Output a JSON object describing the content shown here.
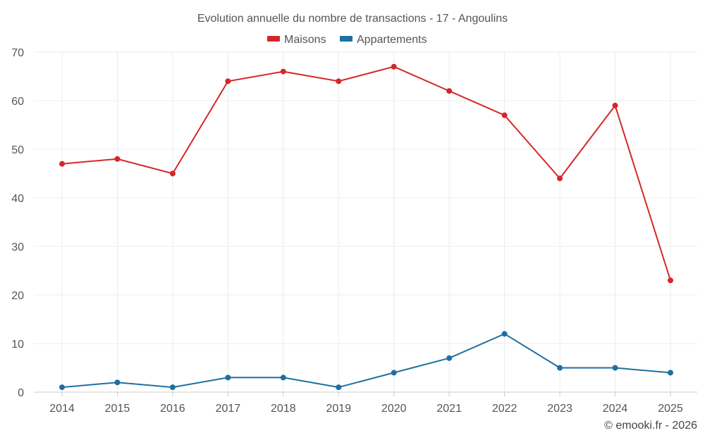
{
  "chart_data": {
    "type": "line",
    "title": "Evolution annuelle du nombre de transactions - 17 - Angoulins",
    "categories": [
      "2014",
      "2015",
      "2016",
      "2017",
      "2018",
      "2019",
      "2020",
      "2021",
      "2022",
      "2023",
      "2024",
      "2025"
    ],
    "series": [
      {
        "name": "Maisons",
        "color": "#d62728",
        "values": [
          47,
          48,
          45,
          64,
          66,
          64,
          67,
          62,
          57,
          44,
          59,
          23
        ]
      },
      {
        "name": "Appartements",
        "color": "#1f6fa0",
        "values": [
          1,
          2,
          1,
          3,
          3,
          1,
          4,
          7,
          12,
          5,
          5,
          4
        ]
      }
    ],
    "ylim": [
      0,
      70
    ],
    "yticks": [
      0,
      10,
      20,
      30,
      40,
      50,
      60,
      70
    ],
    "xlabel": "",
    "ylabel": "",
    "grid": true,
    "legend_position": "top-center"
  },
  "credit": "© emooki.fr - 2026"
}
